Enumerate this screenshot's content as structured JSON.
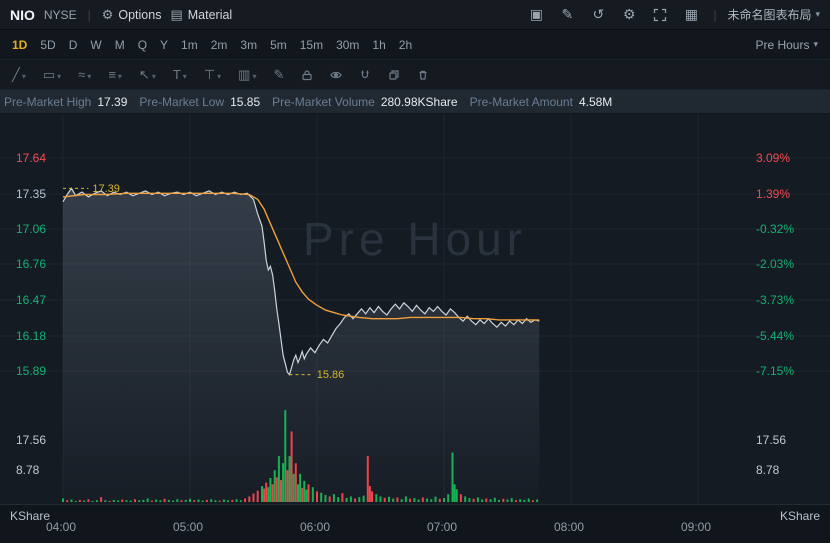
{
  "header": {
    "symbol": "NIO",
    "exchange": "NYSE",
    "options_label": "Options",
    "material_label": "Material",
    "layout_label": "未命名图表布局"
  },
  "icons": {
    "options": "⚙",
    "material": "▤",
    "screenshot": "▣",
    "edit": "✎",
    "reload": "↺",
    "gear": "⚙",
    "grid_layout": "▦",
    "caret_down": "▾",
    "divider": "|",
    "trend": "╱",
    "shapes": "▭",
    "wave": "≈",
    "fib": "≡",
    "cursor": "↖",
    "text_tool": "T",
    "measure": "⊤",
    "pattern": "▥",
    "brush": "✎"
  },
  "timeframes": {
    "items": [
      "1D",
      "5D",
      "D",
      "W",
      "M",
      "Q",
      "Y",
      "1m",
      "2m",
      "3m",
      "5m",
      "15m",
      "30m",
      "1h",
      "2h"
    ],
    "active": "1D",
    "session_label": "Pre Hours"
  },
  "stats": [
    {
      "label": "Pre-Market High",
      "value": "17.39"
    },
    {
      "label": "Pre-Market Low",
      "value": "15.85"
    },
    {
      "label": "Pre-Market Volume",
      "value": "280.98KShare"
    },
    {
      "label": "Pre-Market Amount",
      "value": "4.58M"
    }
  ],
  "chart_data": {
    "type": "line",
    "title": "NIO NYSE pre-market intraday price and volume",
    "watermark": "Pre Hour",
    "x_unit": "minutes after 04:00",
    "x_ticks": [
      {
        "m": 0,
        "label": "04:00"
      },
      {
        "m": 60,
        "label": "05:00"
      },
      {
        "m": 120,
        "label": "06:00"
      },
      {
        "m": 180,
        "label": "07:00"
      },
      {
        "m": 240,
        "label": "08:00"
      },
      {
        "m": 300,
        "label": "09:00"
      }
    ],
    "price_gridlines": [
      17.64,
      17.35,
      17.06,
      16.76,
      16.47,
      16.18,
      15.89
    ],
    "left_axis": [
      {
        "label": "17.64",
        "color": "#f24b50"
      },
      {
        "label": "17.35",
        "color": "#b3c3d5"
      },
      {
        "label": "17.06",
        "color": "#14b071"
      },
      {
        "label": "16.76",
        "color": "#14b071"
      },
      {
        "label": "16.47",
        "color": "#14b071"
      },
      {
        "label": "16.18",
        "color": "#14b071"
      },
      {
        "label": "15.89",
        "color": "#14b071"
      }
    ],
    "right_axis": [
      {
        "label": "3.09%",
        "color": "#f24b50"
      },
      {
        "label": "1.39%",
        "color": "#f24b50"
      },
      {
        "label": "-0.32%",
        "color": "#14b071"
      },
      {
        "label": "-2.03%",
        "color": "#14b071"
      },
      {
        "label": "-3.73%",
        "color": "#14b071"
      },
      {
        "label": "-5.44%",
        "color": "#14b071"
      },
      {
        "label": "-7.15%",
        "color": "#14b071"
      }
    ],
    "volume_axis": {
      "labels": [
        "17.56",
        "8.78"
      ],
      "values": [
        17.56,
        8.78
      ],
      "unit": "KShare"
    },
    "annotations": [
      {
        "text": "17.39",
        "price": 17.39,
        "from_m": 0,
        "to_m": 12
      },
      {
        "text": "15.86",
        "price": 15.86,
        "from_m": 107,
        "to_m": 118
      }
    ],
    "series": [
      {
        "name": "price",
        "color": "#cdd3da",
        "points": [
          [
            0,
            17.28
          ],
          [
            2,
            17.34
          ],
          [
            4,
            17.39
          ],
          [
            6,
            17.33
          ],
          [
            9,
            17.36
          ],
          [
            12,
            17.32
          ],
          [
            15,
            17.35
          ],
          [
            18,
            17.37
          ],
          [
            21,
            17.33
          ],
          [
            24,
            17.36
          ],
          [
            27,
            17.34
          ],
          [
            30,
            17.36
          ],
          [
            33,
            17.33
          ],
          [
            36,
            17.35
          ],
          [
            39,
            17.37
          ],
          [
            42,
            17.34
          ],
          [
            45,
            17.36
          ],
          [
            48,
            17.33
          ],
          [
            51,
            17.35
          ],
          [
            54,
            17.36
          ],
          [
            57,
            17.34
          ],
          [
            60,
            17.36
          ],
          [
            63,
            17.33
          ],
          [
            66,
            17.35
          ],
          [
            69,
            17.37
          ],
          [
            72,
            17.34
          ],
          [
            75,
            17.36
          ],
          [
            78,
            17.34
          ],
          [
            81,
            17.36
          ],
          [
            84,
            17.34
          ],
          [
            87,
            17.35
          ],
          [
            90,
            17.3
          ],
          [
            92,
            17.18
          ],
          [
            94,
            17.08
          ],
          [
            95,
            16.95
          ],
          [
            96,
            16.8
          ],
          [
            97,
            16.72
          ],
          [
            98,
            16.75
          ],
          [
            99,
            16.68
          ],
          [
            100,
            16.55
          ],
          [
            101,
            16.4
          ],
          [
            102,
            16.28
          ],
          [
            103,
            16.15
          ],
          [
            104,
            16.02
          ],
          [
            105,
            15.95
          ],
          [
            106,
            15.88
          ],
          [
            107,
            15.86
          ],
          [
            108,
            15.92
          ],
          [
            109,
            15.98
          ],
          [
            110,
            16.02
          ],
          [
            111,
            15.96
          ],
          [
            112,
            16.0
          ],
          [
            113,
            16.05
          ],
          [
            114,
            15.99
          ],
          [
            115,
            16.03
          ],
          [
            117,
            16.08
          ],
          [
            119,
            16.04
          ],
          [
            121,
            16.1
          ],
          [
            123,
            16.15
          ],
          [
            125,
            16.12
          ],
          [
            127,
            16.18
          ],
          [
            129,
            16.24
          ],
          [
            131,
            16.28
          ],
          [
            133,
            16.33
          ],
          [
            135,
            16.36
          ],
          [
            137,
            16.32
          ],
          [
            139,
            16.36
          ],
          [
            141,
            16.4
          ],
          [
            143,
            16.36
          ],
          [
            145,
            16.41
          ],
          [
            147,
            16.37
          ],
          [
            149,
            16.42
          ],
          [
            151,
            16.38
          ],
          [
            153,
            16.35
          ],
          [
            155,
            16.4
          ],
          [
            157,
            16.44
          ],
          [
            159,
            16.4
          ],
          [
            161,
            16.45
          ],
          [
            163,
            16.42
          ],
          [
            165,
            16.38
          ],
          [
            167,
            16.43
          ],
          [
            169,
            16.39
          ],
          [
            171,
            16.36
          ],
          [
            173,
            16.41
          ],
          [
            175,
            16.38
          ],
          [
            177,
            16.42
          ],
          [
            179,
            16.38
          ],
          [
            181,
            16.35
          ],
          [
            183,
            16.4
          ],
          [
            185,
            16.37
          ],
          [
            187,
            16.33
          ],
          [
            189,
            16.3
          ],
          [
            191,
            16.34
          ],
          [
            193,
            16.3
          ],
          [
            195,
            16.27
          ],
          [
            197,
            16.31
          ],
          [
            199,
            16.28
          ],
          [
            201,
            16.32
          ],
          [
            203,
            16.28
          ],
          [
            205,
            16.25
          ],
          [
            207,
            16.29
          ],
          [
            209,
            16.26
          ],
          [
            211,
            16.3
          ],
          [
            213,
            16.27
          ],
          [
            215,
            16.31
          ],
          [
            217,
            16.28
          ],
          [
            219,
            16.32
          ],
          [
            221,
            16.29
          ],
          [
            223,
            16.31
          ],
          [
            225,
            16.3
          ]
        ]
      },
      {
        "name": "avg_price",
        "color": "#f0a03a",
        "points": [
          [
            0,
            17.32
          ],
          [
            10,
            17.34
          ],
          [
            20,
            17.34
          ],
          [
            30,
            17.35
          ],
          [
            40,
            17.35
          ],
          [
            50,
            17.35
          ],
          [
            60,
            17.35
          ],
          [
            70,
            17.35
          ],
          [
            80,
            17.35
          ],
          [
            88,
            17.34
          ],
          [
            92,
            17.3
          ],
          [
            95,
            17.22
          ],
          [
            98,
            17.1
          ],
          [
            101,
            16.98
          ],
          [
            104,
            16.86
          ],
          [
            107,
            16.74
          ],
          [
            110,
            16.62
          ],
          [
            113,
            16.54
          ],
          [
            116,
            16.48
          ],
          [
            120,
            16.43
          ],
          [
            124,
            16.39
          ],
          [
            128,
            16.37
          ],
          [
            132,
            16.35
          ],
          [
            136,
            16.34
          ],
          [
            140,
            16.33
          ],
          [
            146,
            16.32
          ],
          [
            152,
            16.32
          ],
          [
            158,
            16.32
          ],
          [
            164,
            16.33
          ],
          [
            170,
            16.33
          ],
          [
            176,
            16.33
          ],
          [
            182,
            16.33
          ],
          [
            188,
            16.33
          ],
          [
            194,
            16.32
          ],
          [
            200,
            16.32
          ],
          [
            206,
            16.31
          ],
          [
            212,
            16.31
          ],
          [
            218,
            16.31
          ],
          [
            225,
            16.31
          ]
        ]
      }
    ],
    "volume_bars": [
      [
        0,
        1.0,
        "u"
      ],
      [
        2,
        0.5,
        "d"
      ],
      [
        4,
        0.7,
        "u"
      ],
      [
        6,
        0.3,
        "u"
      ],
      [
        8,
        0.6,
        "d"
      ],
      [
        10,
        0.4,
        "u"
      ],
      [
        12,
        0.8,
        "d"
      ],
      [
        14,
        0.3,
        "u"
      ],
      [
        16,
        0.5,
        "u"
      ],
      [
        18,
        1.4,
        "d"
      ],
      [
        20,
        0.5,
        "u"
      ],
      [
        22,
        0.3,
        "d"
      ],
      [
        24,
        0.6,
        "u"
      ],
      [
        26,
        0.4,
        "u"
      ],
      [
        28,
        0.7,
        "d"
      ],
      [
        30,
        0.5,
        "u"
      ],
      [
        32,
        0.4,
        "u"
      ],
      [
        34,
        0.8,
        "d"
      ],
      [
        36,
        0.5,
        "u"
      ],
      [
        38,
        0.6,
        "u"
      ],
      [
        40,
        1.0,
        "u"
      ],
      [
        42,
        0.4,
        "d"
      ],
      [
        44,
        0.7,
        "u"
      ],
      [
        46,
        0.5,
        "u"
      ],
      [
        48,
        0.9,
        "d"
      ],
      [
        50,
        0.6,
        "u"
      ],
      [
        52,
        0.4,
        "u"
      ],
      [
        54,
        0.8,
        "u"
      ],
      [
        56,
        0.5,
        "d"
      ],
      [
        58,
        0.6,
        "u"
      ],
      [
        60,
        0.9,
        "u"
      ],
      [
        62,
        0.5,
        "d"
      ],
      [
        64,
        0.7,
        "u"
      ],
      [
        66,
        0.4,
        "u"
      ],
      [
        68,
        0.6,
        "d"
      ],
      [
        70,
        0.8,
        "u"
      ],
      [
        72,
        0.5,
        "u"
      ],
      [
        74,
        0.4,
        "d"
      ],
      [
        76,
        0.7,
        "u"
      ],
      [
        78,
        0.5,
        "u"
      ],
      [
        80,
        0.6,
        "d"
      ],
      [
        82,
        0.8,
        "u"
      ],
      [
        84,
        0.5,
        "u"
      ],
      [
        86,
        1.0,
        "d"
      ],
      [
        88,
        1.6,
        "d"
      ],
      [
        90,
        2.4,
        "d"
      ],
      [
        92,
        3.2,
        "d"
      ],
      [
        94,
        4.5,
        "u"
      ],
      [
        95,
        3.8,
        "d"
      ],
      [
        96,
        5.5,
        "d"
      ],
      [
        97,
        4.2,
        "u"
      ],
      [
        98,
        6.8,
        "u"
      ],
      [
        99,
        5.0,
        "d"
      ],
      [
        100,
        9.0,
        "u"
      ],
      [
        101,
        7.0,
        "d"
      ],
      [
        102,
        13.0,
        "u"
      ],
      [
        103,
        6.2,
        "d"
      ],
      [
        104,
        11.0,
        "u"
      ],
      [
        105,
        26.0,
        "u"
      ],
      [
        106,
        9.0,
        "d"
      ],
      [
        107,
        13.0,
        "u"
      ],
      [
        108,
        20.0,
        "d"
      ],
      [
        109,
        8.0,
        "u"
      ],
      [
        110,
        11.0,
        "d"
      ],
      [
        111,
        5.0,
        "u"
      ],
      [
        112,
        8.0,
        "u"
      ],
      [
        113,
        4.0,
        "d"
      ],
      [
        114,
        6.0,
        "u"
      ],
      [
        115,
        3.5,
        "u"
      ],
      [
        116,
        5.0,
        "d"
      ],
      [
        118,
        4.2,
        "u"
      ],
      [
        120,
        3.0,
        "d"
      ],
      [
        122,
        2.6,
        "u"
      ],
      [
        124,
        2.0,
        "u"
      ],
      [
        126,
        1.6,
        "d"
      ],
      [
        128,
        2.2,
        "u"
      ],
      [
        130,
        1.4,
        "u"
      ],
      [
        132,
        2.5,
        "d"
      ],
      [
        134,
        1.2,
        "u"
      ],
      [
        136,
        1.6,
        "u"
      ],
      [
        138,
        1.0,
        "d"
      ],
      [
        140,
        1.4,
        "u"
      ],
      [
        142,
        1.8,
        "u"
      ],
      [
        144,
        13.0,
        "d"
      ],
      [
        145,
        4.5,
        "d"
      ],
      [
        146,
        3.0,
        "d"
      ],
      [
        148,
        2.2,
        "u"
      ],
      [
        150,
        1.6,
        "u"
      ],
      [
        152,
        1.2,
        "d"
      ],
      [
        154,
        1.5,
        "u"
      ],
      [
        156,
        1.0,
        "u"
      ],
      [
        158,
        1.3,
        "d"
      ],
      [
        160,
        0.8,
        "u"
      ],
      [
        162,
        1.6,
        "u"
      ],
      [
        164,
        0.9,
        "d"
      ],
      [
        166,
        1.1,
        "u"
      ],
      [
        168,
        0.7,
        "u"
      ],
      [
        170,
        1.3,
        "d"
      ],
      [
        172,
        1.0,
        "u"
      ],
      [
        174,
        0.8,
        "u"
      ],
      [
        176,
        1.5,
        "u"
      ],
      [
        178,
        0.9,
        "d"
      ],
      [
        180,
        1.1,
        "u"
      ],
      [
        182,
        2.2,
        "u"
      ],
      [
        184,
        14.0,
        "u"
      ],
      [
        185,
        5.0,
        "u"
      ],
      [
        186,
        3.6,
        "u"
      ],
      [
        188,
        2.2,
        "d"
      ],
      [
        190,
        1.6,
        "u"
      ],
      [
        192,
        1.1,
        "u"
      ],
      [
        194,
        0.9,
        "d"
      ],
      [
        196,
        1.3,
        "u"
      ],
      [
        198,
        0.7,
        "u"
      ],
      [
        200,
        1.0,
        "d"
      ],
      [
        202,
        0.8,
        "u"
      ],
      [
        204,
        1.2,
        "u"
      ],
      [
        206,
        0.6,
        "u"
      ],
      [
        208,
        0.9,
        "d"
      ],
      [
        210,
        0.7,
        "u"
      ],
      [
        212,
        1.1,
        "u"
      ],
      [
        214,
        0.5,
        "d"
      ],
      [
        216,
        0.8,
        "u"
      ],
      [
        218,
        0.6,
        "u"
      ],
      [
        220,
        1.0,
        "u"
      ],
      [
        222,
        0.5,
        "d"
      ],
      [
        224,
        0.7,
        "u"
      ]
    ],
    "colors": {
      "up": "#18b154",
      "down": "#f0434a",
      "grid": "#1e262f",
      "area_top": "rgba(125,140,160,0.30)",
      "area_bottom": "rgba(125,140,160,0.02)",
      "annotation": "#d7b62c",
      "watermark": "#2a323e"
    }
  }
}
